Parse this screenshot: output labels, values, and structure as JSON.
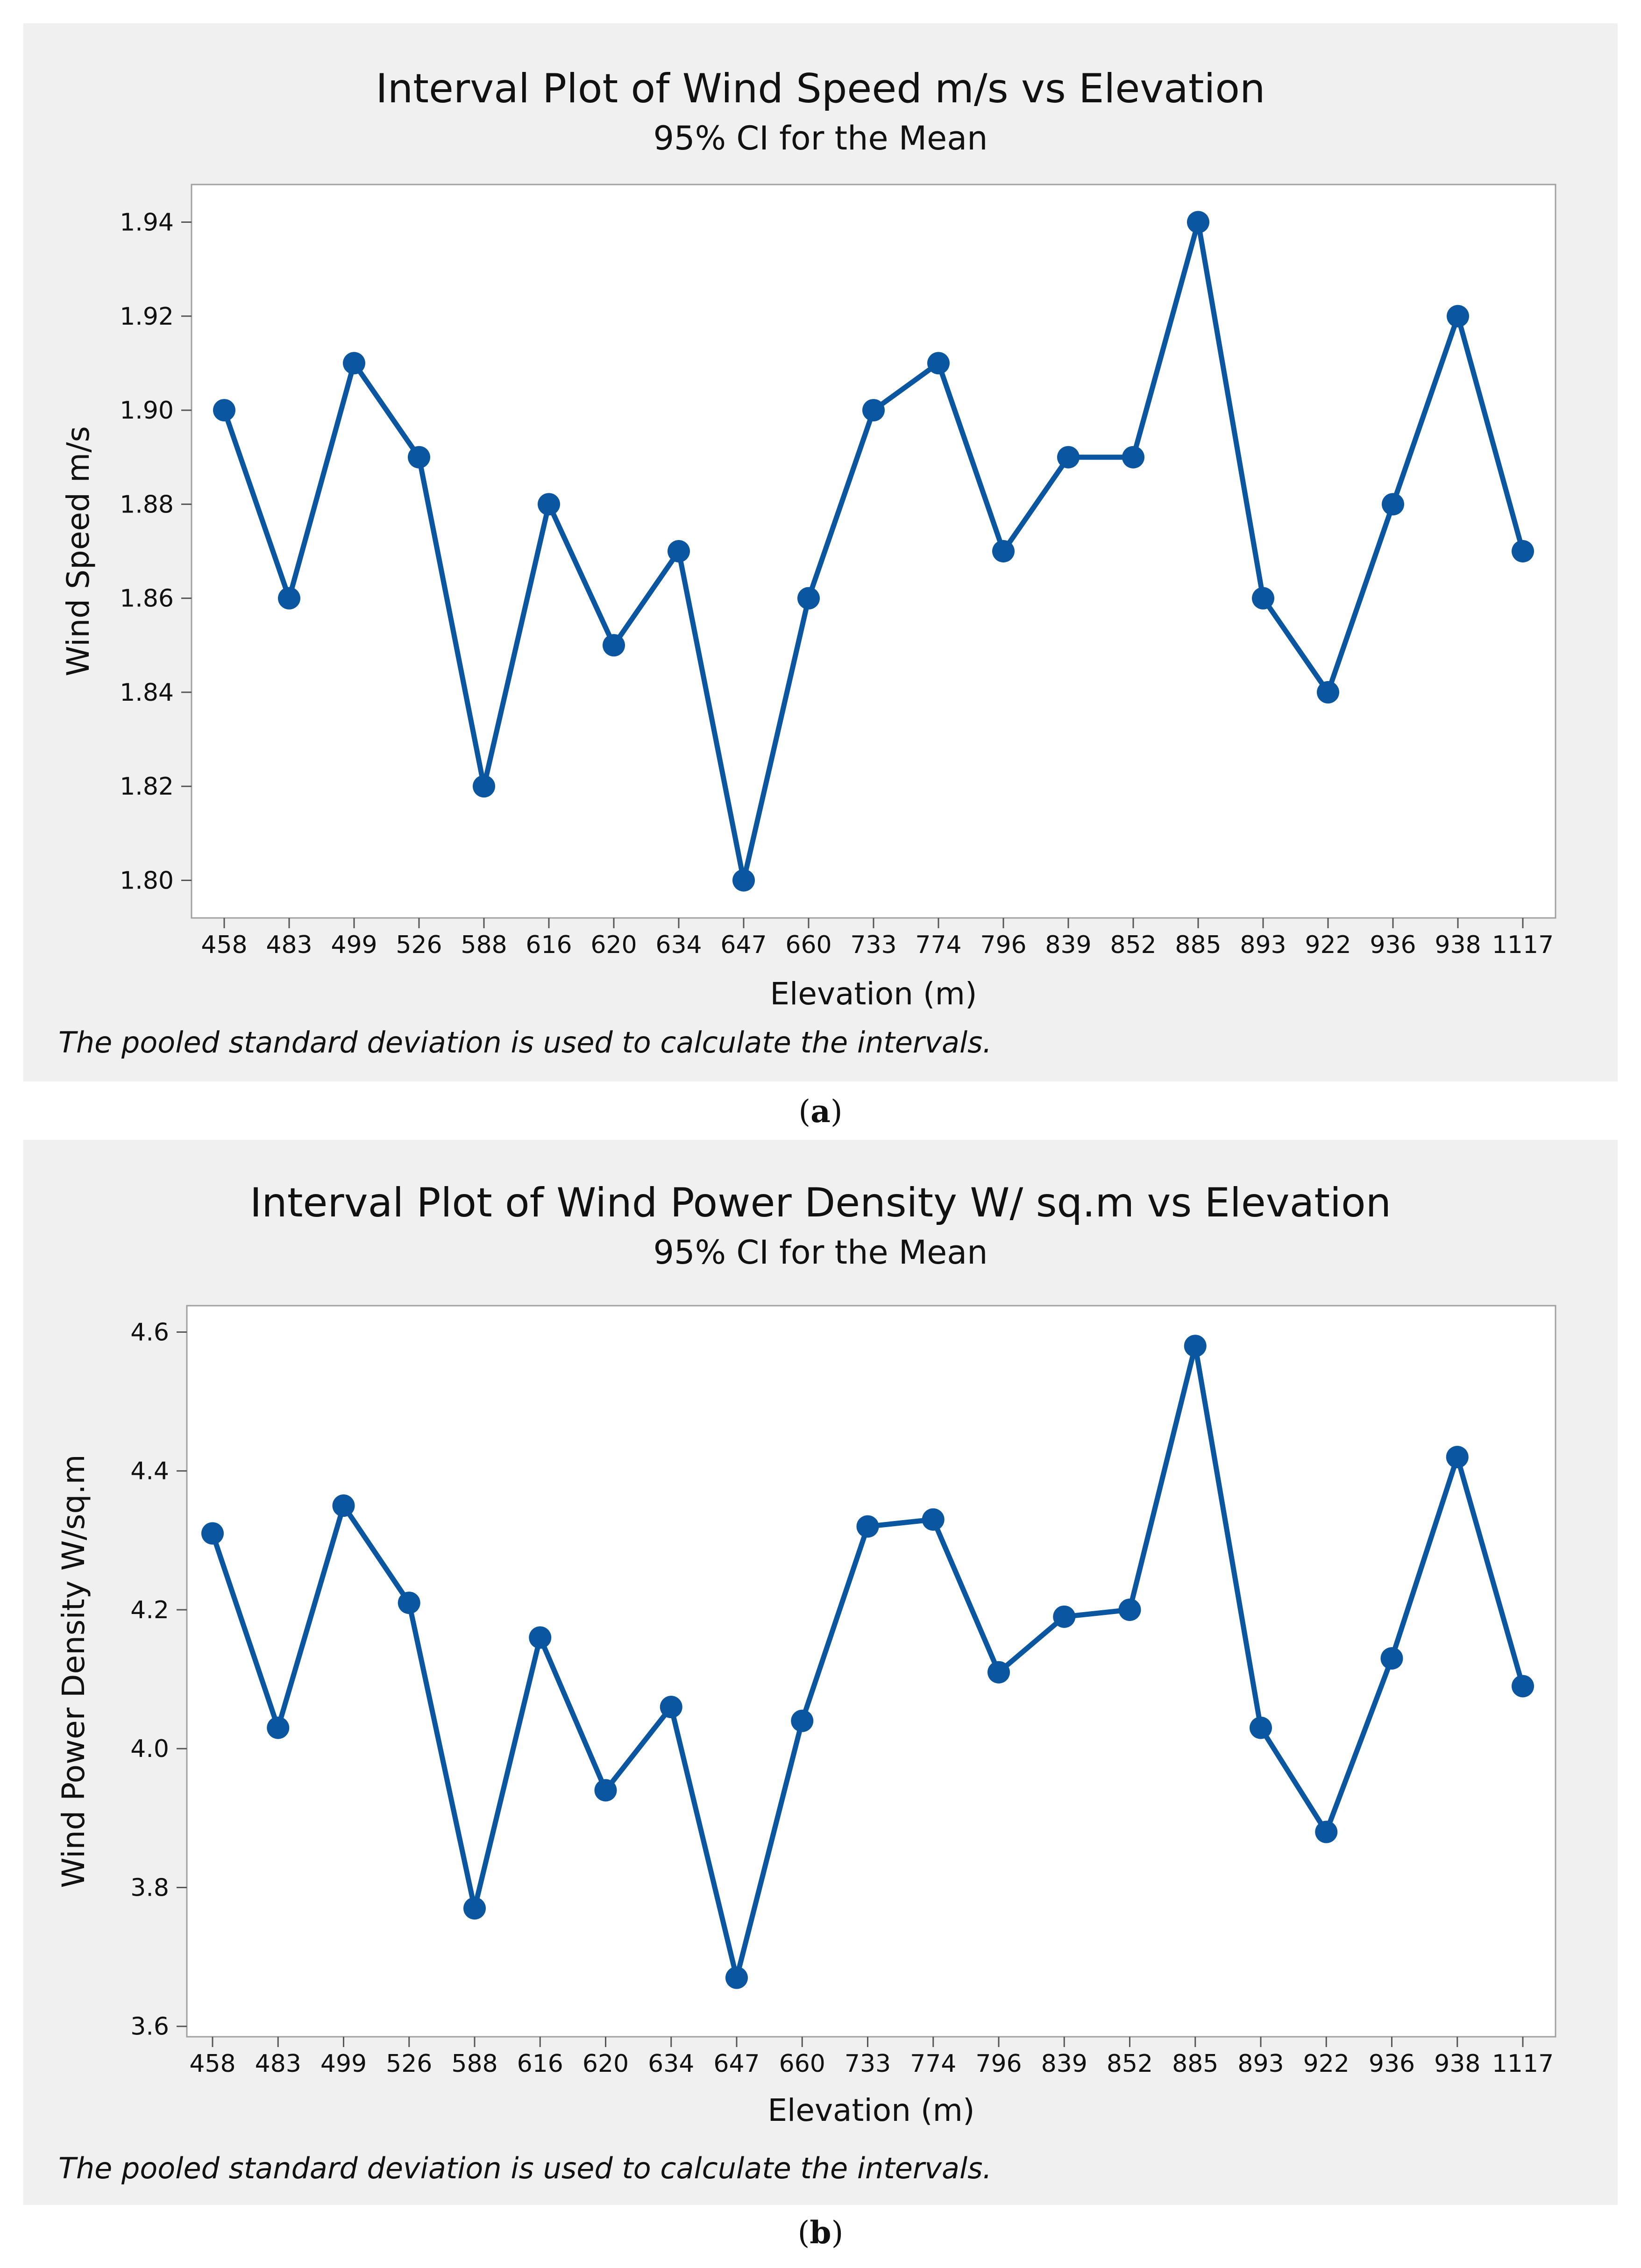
{
  "chart_data": [
    {
      "type": "line",
      "id": "a",
      "title": "Interval Plot of Wind Speed m/s vs Elevation",
      "subtitle": "95% CI for the Mean",
      "xlabel": "Elevation (m)",
      "ylabel": "Wind Speed m/s",
      "categories": [
        "458",
        "483",
        "499",
        "526",
        "588",
        "616",
        "620",
        "634",
        "647",
        "660",
        "733",
        "774",
        "796",
        "839",
        "852",
        "885",
        "893",
        "922",
        "936",
        "938",
        "1117"
      ],
      "values": [
        1.9,
        1.86,
        1.91,
        1.89,
        1.82,
        1.88,
        1.85,
        1.87,
        1.8,
        1.86,
        1.9,
        1.91,
        1.87,
        1.89,
        1.89,
        1.94,
        1.86,
        1.84,
        1.88,
        1.92,
        1.87
      ],
      "ylim": [
        1.792,
        1.948
      ],
      "yticks": [
        "1.80",
        "1.82",
        "1.84",
        "1.86",
        "1.88",
        "1.90",
        "1.92",
        "1.94"
      ],
      "note": "The pooled standard deviation is used to calculate the intervals.",
      "caption_letter": "a",
      "color": "#0a56a0",
      "grid": false
    },
    {
      "type": "line",
      "id": "b",
      "title": "Interval Plot of Wind Power Density W/ sq.m vs Elevation",
      "subtitle": "95% CI for the Mean",
      "xlabel": "Elevation (m)",
      "ylabel": "Wind Power Density W/sq.m",
      "categories": [
        "458",
        "483",
        "499",
        "526",
        "588",
        "616",
        "620",
        "634",
        "647",
        "660",
        "733",
        "774",
        "796",
        "839",
        "852",
        "885",
        "893",
        "922",
        "936",
        "938",
        "1117"
      ],
      "values": [
        4.31,
        4.03,
        4.35,
        4.21,
        3.77,
        4.16,
        3.94,
        4.06,
        3.67,
        4.04,
        4.32,
        4.33,
        4.11,
        4.19,
        4.2,
        4.58,
        4.03,
        3.88,
        4.13,
        4.42,
        4.09
      ],
      "ylim": [
        3.585,
        4.638
      ],
      "yticks": [
        "3.6",
        "3.8",
        "4.0",
        "4.2",
        "4.4",
        "4.6"
      ],
      "note": "The pooled standard deviation is used to calculate the intervals.",
      "caption_letter": "b",
      "color": "#0a56a0",
      "grid": false
    }
  ],
  "captions": {
    "open": "(",
    "close": ")"
  }
}
